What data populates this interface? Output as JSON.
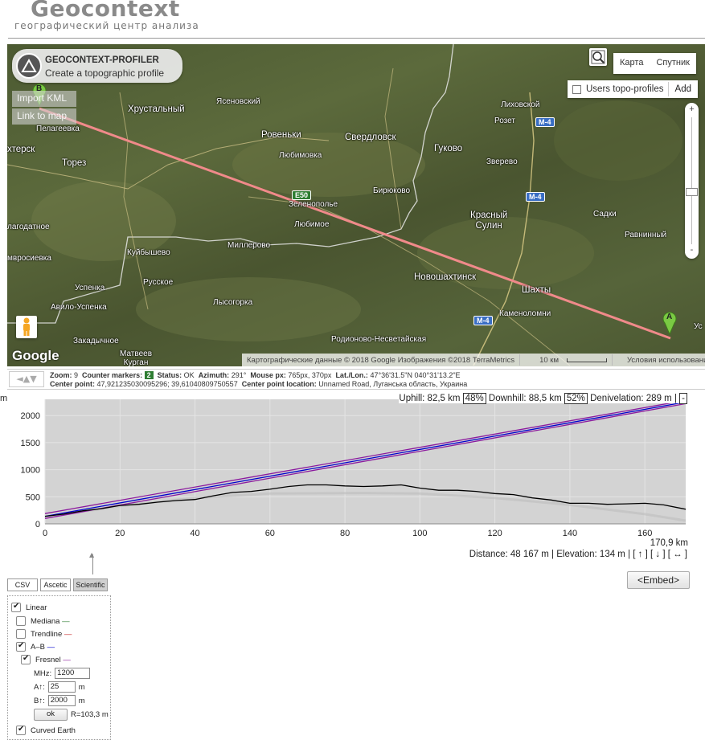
{
  "header": {
    "logo": "Geocontext",
    "tagline": "географический центр анализа"
  },
  "map": {
    "profiler_title": "GEOCONTEXT-PROFILER",
    "profiler_subtitle": "Create a topographic profile",
    "import_kml": "Import KML",
    "link_to_map": "Link to map",
    "map_type_map": "Карта",
    "map_type_satellite": "Спутник",
    "users_topo_profiles": "Users topo-profiles",
    "add_label": "Add",
    "zoom_in": "+",
    "zoom_out": "-",
    "google_logo": "Google",
    "attribution": "Картографические данные © 2018 Google Изображения ©2018 TerraMetrics",
    "scale_label": "10 км",
    "terms": "Условия использования",
    "marker_a": "A",
    "marker_b": "B",
    "road_e50": "E50",
    "road_m4": "M-4",
    "places": {
      "hrustalny": "Хрустальный",
      "yasenovsky": "Ясеновский",
      "lihovskoy": "Лиховской",
      "pelageevka": "Пелагеевка",
      "rovenki": "Ровеньки",
      "sverdlovsk": "Свердловск",
      "gukovo": "Гуково",
      "rozet": "Розет",
      "khtersk": "хтерск",
      "torez": "Торез",
      "lyubimovka": "Любимовка",
      "zverevo": "Зверево",
      "biryukovo": "Бирюково",
      "zelenopolye": "Зеленополье",
      "lyubimoe": "Любимое",
      "krasny_sulin": "Красный\nСулин",
      "sadki": "Садки",
      "nagodatnoe": "лагодатное",
      "mirrosievka": "мвросиевка",
      "kuibyshevo": "Куйбышево",
      "millerovo": "Миллерово",
      "ravninny": "Равнинный",
      "uspenka": "Успенка",
      "russkoe": "Русское",
      "novoshakhtinsk": "Новошахтинск",
      "shakhty": "Шахты",
      "avilo_uspenka": "Авило-Успенка",
      "lysogorka": "Лысогорка",
      "kamenolomni": "Каменоломни",
      "zakadychnoe": "Закадычное",
      "rodionovo": "Родионово-Несветайская",
      "matveev_kurgan": "Матвеев\nКурган",
      "us": "Ус"
    }
  },
  "status": {
    "arrows": "◄▲▼",
    "zoom_label": "Zoom:",
    "zoom_value": "9",
    "counter_label": "Counter markers:",
    "counter_value": "2",
    "status_label": "Status:",
    "status_value": "OK",
    "azimuth_label": "Azimuth:",
    "azimuth_value": "291°",
    "mouse_label": "Mouse px:",
    "mouse_value": "765px, 370px",
    "latlon_label": "Lat./Lon.:",
    "latlon_value": "47°36'31.5\"N 040°31'13.2\"E",
    "center_label": "Center point:",
    "center_value": "47,92123503009529​6; 39,61040809750557",
    "center_loc_label": "Center point location:",
    "center_loc_value": "Unnamed Road, Луганська область, Украина"
  },
  "profile": {
    "y_unit": "m",
    "x_unit_value": "170,9 km",
    "stats_top": {
      "uphill": "Uphill: 82,5 km",
      "uphill_pct": "48%",
      "downhill": "Downhill: 88,5 km",
      "downhill_pct": "52%",
      "denivelation": "Denivelation: 289 m",
      "collapse": "-"
    },
    "stats_bottom": "Distance: 48 167 m  |  Elevation: 134 m  |  [ ↑ ] [ ↓ ] [ ↔ ]",
    "embed": "<Embed>"
  },
  "chart_data": {
    "type": "line",
    "xlabel": "",
    "ylabel": "m",
    "xlim": [
      0,
      170.9
    ],
    "ylim": [
      0,
      2300
    ],
    "x_ticks": [
      0,
      20,
      40,
      60,
      80,
      100,
      120,
      140,
      160
    ],
    "y_ticks": [
      0,
      500,
      1000,
      1500,
      2000
    ],
    "series": [
      {
        "color": "#000000",
        "x": [
          0,
          5,
          10,
          15,
          20,
          25,
          30,
          35,
          40,
          45,
          50,
          55,
          60,
          65,
          70,
          75,
          80,
          85,
          90,
          95,
          100,
          105,
          110,
          115,
          120,
          125,
          130,
          135,
          140,
          145,
          150,
          155,
          160,
          165,
          170.9
        ],
        "values": [
          140,
          180,
          240,
          280,
          340,
          360,
          400,
          430,
          450,
          520,
          580,
          600,
          640,
          690,
          720,
          720,
          700,
          690,
          700,
          720,
          660,
          620,
          620,
          600,
          560,
          540,
          480,
          440,
          380,
          380,
          360,
          370,
          380,
          350,
          270
        ]
      },
      {
        "color": "#0000cc",
        "x": [
          0,
          170.9
        ],
        "values": [
          140,
          2250
        ]
      },
      {
        "color": "#8b1a9e",
        "x": [
          0,
          170.9
        ],
        "values": [
          190,
          2280
        ]
      },
      {
        "color": "#8b1a9e",
        "x": [
          0,
          170.9
        ],
        "values": [
          100,
          2220
        ]
      },
      {
        "color": "#bbbbbb",
        "x": [
          0,
          20,
          40,
          60,
          85,
          100,
          120,
          140,
          160,
          170.9
        ],
        "values": [
          120,
          330,
          480,
          560,
          570,
          560,
          480,
          350,
          180,
          60
        ]
      }
    ]
  },
  "options": {
    "tab_csv": "CSV",
    "tab_ascetic": "Ascetic",
    "tab_scientific": "Scientific",
    "linear": "Linear",
    "mediana": "Mediana",
    "trendline": "Trendline",
    "ab": "A–B",
    "fresnel": "Fresnel",
    "dash": "—",
    "mhz_label": "MHz:",
    "mhz_value": "1200",
    "a_label": "A↑:",
    "a_value": "25",
    "b_label": "B↑:",
    "b_value": "2000",
    "unit_m": "m",
    "ok": "ok",
    "r_value": "R=103,3 m",
    "curved_earth": "Curved Earth"
  }
}
